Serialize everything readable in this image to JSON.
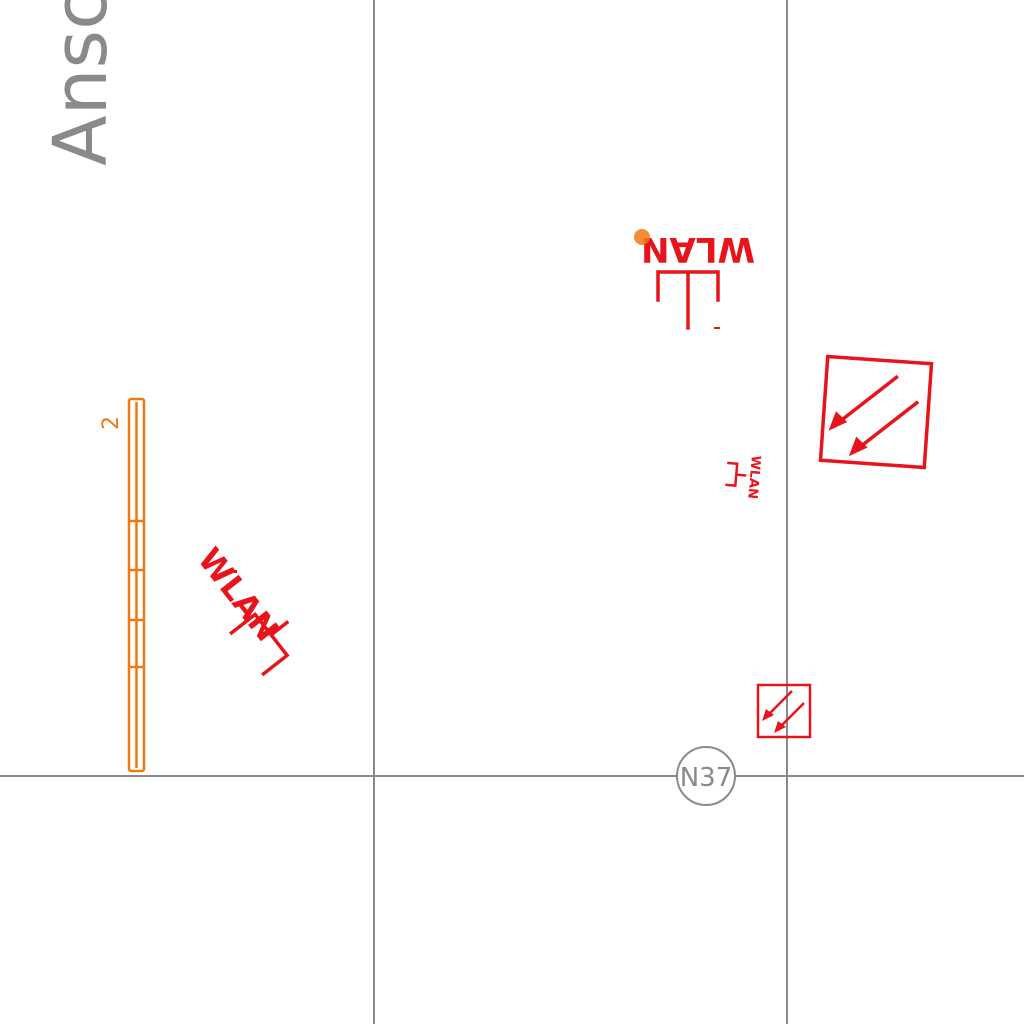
{
  "room_label_partial": "Ansc",
  "grid_marker": "N37",
  "cable_tray_label": "2",
  "wlan_label": "WLAN",
  "colors": {
    "grid": "#8a8a8a",
    "equipment": "#e8141c",
    "cable_tray": "#f07a12"
  },
  "icons": [
    "wlan-access-point-icon",
    "emergency-exit-arrow-icon",
    "cable-tray-icon",
    "grid-marker-circle-icon"
  ]
}
